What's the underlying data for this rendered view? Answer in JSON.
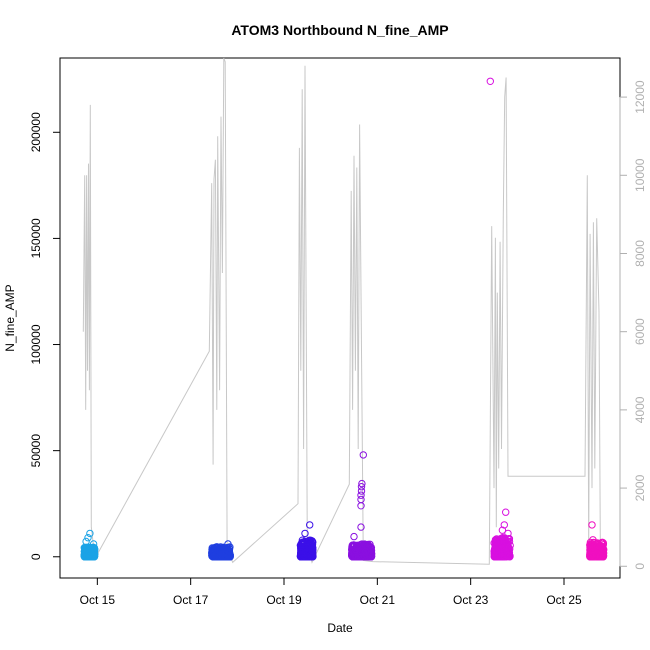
{
  "chart_data": {
    "type": "scatter",
    "title": "ATOM3 Northbound N_fine_AMP",
    "xlabel": "Date",
    "ylabel": "N_fine_AMP",
    "x_ticks": [
      {
        "label": "Oct 15",
        "value": 15
      },
      {
        "label": "Oct 17",
        "value": 17
      },
      {
        "label": "Oct 19",
        "value": 19
      },
      {
        "label": "Oct 21",
        "value": 21
      },
      {
        "label": "Oct 23",
        "value": 23
      },
      {
        "label": "Oct 25",
        "value": 25
      }
    ],
    "xlim": [
      14.2,
      26.2
    ],
    "ylim": [
      -10000,
      235000
    ],
    "y_ticks": [
      0,
      50000,
      100000,
      150000,
      200000
    ],
    "y2lim": [
      -300,
      13000
    ],
    "y2_ticks": [
      0,
      2000,
      4000,
      6000,
      8000,
      10000,
      12000
    ],
    "grid": false,
    "series": [
      {
        "color": "#1ba3e6",
        "clusters": [
          {
            "x_start": 14.72,
            "x_end": 14.95,
            "y_max": 4500
          }
        ],
        "outliers": [
          {
            "x": 14.76,
            "y": 7200
          },
          {
            "x": 14.8,
            "y": 9000
          },
          {
            "x": 14.84,
            "y": 11000
          },
          {
            "x": 14.92,
            "y": 6000
          }
        ]
      },
      {
        "color": "#1f3fe0",
        "clusters": [
          {
            "x_start": 17.45,
            "x_end": 17.85,
            "y_max": 4800
          }
        ],
        "outliers": [
          {
            "x": 17.8,
            "y": 6000
          }
        ]
      },
      {
        "color": "#3b10e8",
        "clusters": [
          {
            "x_start": 19.35,
            "x_end": 19.62,
            "y_max": 8000
          }
        ],
        "outliers": [
          {
            "x": 19.55,
            "y": 15000
          },
          {
            "x": 19.45,
            "y": 11000
          }
        ]
      },
      {
        "color": "#8a10e0",
        "clusters": [
          {
            "x_start": 20.45,
            "x_end": 20.88,
            "y_max": 6000
          }
        ],
        "outliers": [
          {
            "x": 20.5,
            "y": 9500
          },
          {
            "x": 20.65,
            "y": 14000
          },
          {
            "x": 20.65,
            "y": 24000
          },
          {
            "x": 20.65,
            "y": 27000
          },
          {
            "x": 20.65,
            "y": 29000
          },
          {
            "x": 20.66,
            "y": 31000
          },
          {
            "x": 20.66,
            "y": 33000
          },
          {
            "x": 20.67,
            "y": 34500
          },
          {
            "x": 20.7,
            "y": 48000
          }
        ]
      },
      {
        "color": "#d810e0",
        "clusters": [
          {
            "x_start": 23.5,
            "x_end": 23.85,
            "y_max": 9000
          }
        ],
        "outliers": [
          {
            "x": 23.42,
            "y": 224000
          },
          {
            "x": 23.6,
            "y": 7000
          },
          {
            "x": 23.68,
            "y": 12500
          },
          {
            "x": 23.72,
            "y": 15000
          },
          {
            "x": 23.75,
            "y": 21000
          },
          {
            "x": 23.8,
            "y": 11000
          }
        ]
      },
      {
        "color": "#f010c0",
        "clusters": [
          {
            "x_start": 25.55,
            "x_end": 25.85,
            "y_max": 7000
          }
        ],
        "outliers": [
          {
            "x": 25.6,
            "y": 15000
          },
          {
            "x": 25.62,
            "y": 8000
          }
        ]
      }
    ],
    "secondary_series": {
      "color": "#c8c8c8",
      "description_axis": "right",
      "points": [
        [
          14.7,
          6000
        ],
        [
          14.73,
          10000
        ],
        [
          14.75,
          4000
        ],
        [
          14.77,
          10000
        ],
        [
          14.79,
          5000
        ],
        [
          14.81,
          10300
        ],
        [
          14.83,
          4500
        ],
        [
          14.85,
          11800
        ],
        [
          14.87,
          1000
        ],
        [
          14.95,
          200
        ],
        [
          17.4,
          5500
        ],
        [
          17.45,
          9800
        ],
        [
          17.48,
          2600
        ],
        [
          17.5,
          9900
        ],
        [
          17.53,
          10400
        ],
        [
          17.56,
          4000
        ],
        [
          17.58,
          11000
        ],
        [
          17.62,
          4500
        ],
        [
          17.65,
          11500
        ],
        [
          17.68,
          7500
        ],
        [
          17.71,
          13000
        ],
        [
          17.74,
          12900
        ],
        [
          17.78,
          500
        ],
        [
          17.9,
          100
        ],
        [
          19.3,
          1600
        ],
        [
          19.33,
          10700
        ],
        [
          19.36,
          5000
        ],
        [
          19.39,
          12200
        ],
        [
          19.42,
          3000
        ],
        [
          19.45,
          12800
        ],
        [
          19.5,
          500
        ],
        [
          19.6,
          100
        ],
        [
          20.4,
          2100
        ],
        [
          20.44,
          9600
        ],
        [
          20.47,
          4000
        ],
        [
          20.5,
          10500
        ],
        [
          20.53,
          5000
        ],
        [
          20.56,
          10200
        ],
        [
          20.59,
          3000
        ],
        [
          20.62,
          11300
        ],
        [
          20.66,
          5500
        ],
        [
          20.7,
          150
        ],
        [
          20.9,
          120
        ],
        [
          23.4,
          50
        ],
        [
          23.45,
          8700
        ],
        [
          23.5,
          2000
        ],
        [
          23.53,
          8400
        ],
        [
          23.55,
          1000
        ],
        [
          23.57,
          7000
        ],
        [
          23.6,
          2500
        ],
        [
          23.63,
          8300
        ],
        [
          23.66,
          3000
        ],
        [
          23.7,
          9000
        ],
        [
          23.73,
          12000
        ],
        [
          23.76,
          12500
        ],
        [
          23.8,
          2300
        ],
        [
          25.45,
          2300
        ],
        [
          25.5,
          10000
        ],
        [
          25.53,
          500
        ],
        [
          25.56,
          8500
        ],
        [
          25.6,
          2000
        ],
        [
          25.63,
          8800
        ],
        [
          25.66,
          2500
        ],
        [
          25.7,
          8900
        ],
        [
          25.75,
          6500
        ],
        [
          25.78,
          200
        ]
      ]
    }
  }
}
